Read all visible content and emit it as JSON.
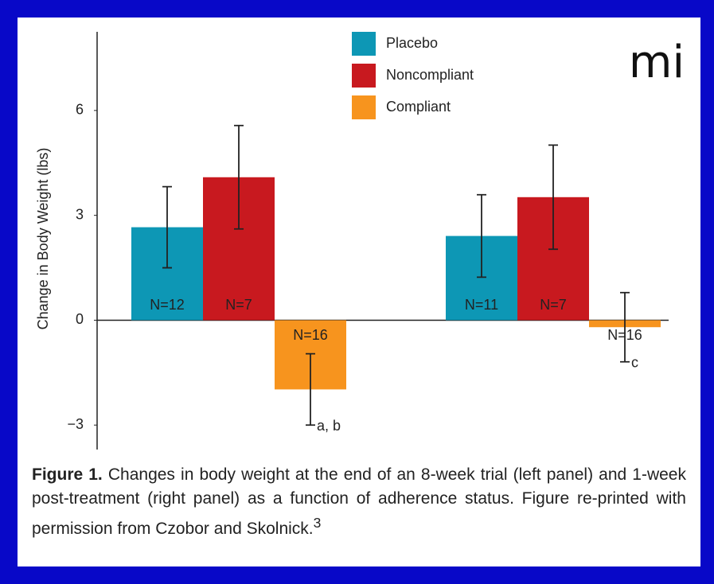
{
  "chart_data": {
    "type": "bar",
    "y_label": "Change in Body Weight (lbs)",
    "categories": [
      null,
      null
    ],
    "series": [
      {
        "name": "Placebo",
        "color": "#0d97b5",
        "values": [
          2.66,
          2.41
        ],
        "errors": [
          1.16,
          1.18
        ],
        "annotations": [
          "N=12",
          "N=11"
        ],
        "notes": [
          null,
          null
        ]
      },
      {
        "name": "Noncompliant",
        "color": "#c8191f",
        "values": [
          4.09,
          3.52
        ],
        "errors": [
          1.48,
          1.49
        ],
        "annotations": [
          "N=7",
          "N=7"
        ],
        "notes": [
          null,
          null
        ]
      },
      {
        "name": "Compliant",
        "color": "#f7941e",
        "values": [
          -1.98,
          -0.2
        ],
        "errors": [
          1.02,
          0.99
        ],
        "annotations": [
          "N=16",
          "N=16"
        ],
        "notes": [
          "a, b",
          "c"
        ]
      }
    ],
    "ylim": [
      -3.7,
      8.25
    ],
    "yticks": [
      {
        "value": -3,
        "label": "−3"
      },
      0,
      3,
      6
    ],
    "grid": false,
    "legend": "top"
  },
  "logo": "mi",
  "caption": {
    "label": "Figure 1.",
    "text": "Changes in body weight at the end of an 8-week trial (left panel) and 1-week post-treatment (right panel) as a function of adherence status. Figure re-printed with permission from Czobor and Skolnick.",
    "ref": "3"
  }
}
